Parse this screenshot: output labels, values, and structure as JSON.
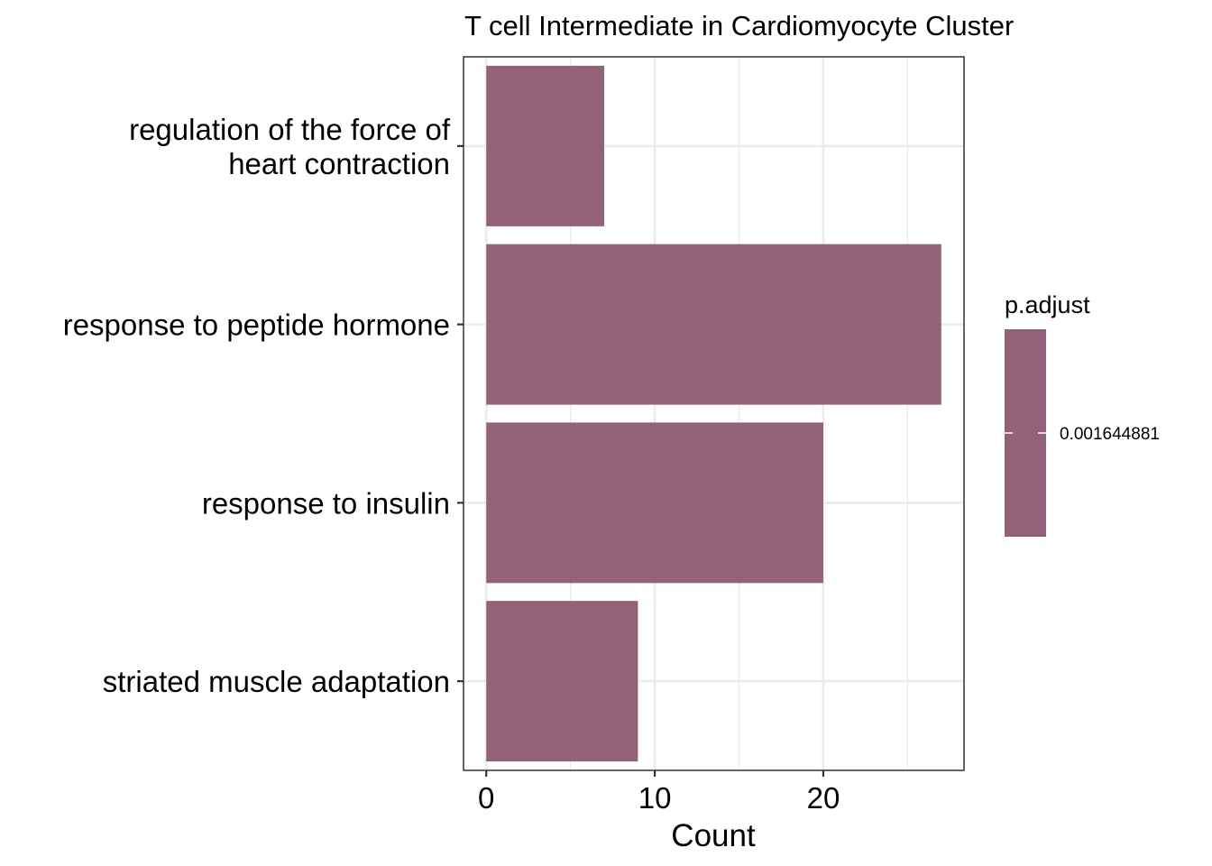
{
  "chart_data": {
    "type": "bar",
    "orientation": "horizontal",
    "title": "T cell Intermediate in Cardiomyocyte Cluster",
    "xlabel": "Count",
    "ylabel": "",
    "xlim": [
      -1.35,
      28.35
    ],
    "x_ticks": [
      0,
      10,
      20
    ],
    "x_minor_ticks": [
      5,
      15,
      25
    ],
    "categories": [
      [
        "regulation of the force of",
        "heart contraction"
      ],
      [
        "response to peptide hormone"
      ],
      [
        "response to insulin"
      ],
      [
        "striated muscle adaptation"
      ]
    ],
    "values": [
      7,
      27,
      20,
      9
    ],
    "bar_color": "#936278",
    "grid": true,
    "legend": {
      "title": "p.adjust",
      "position": "right",
      "labels": [
        "0.001644881"
      ],
      "color": "#936278"
    }
  }
}
